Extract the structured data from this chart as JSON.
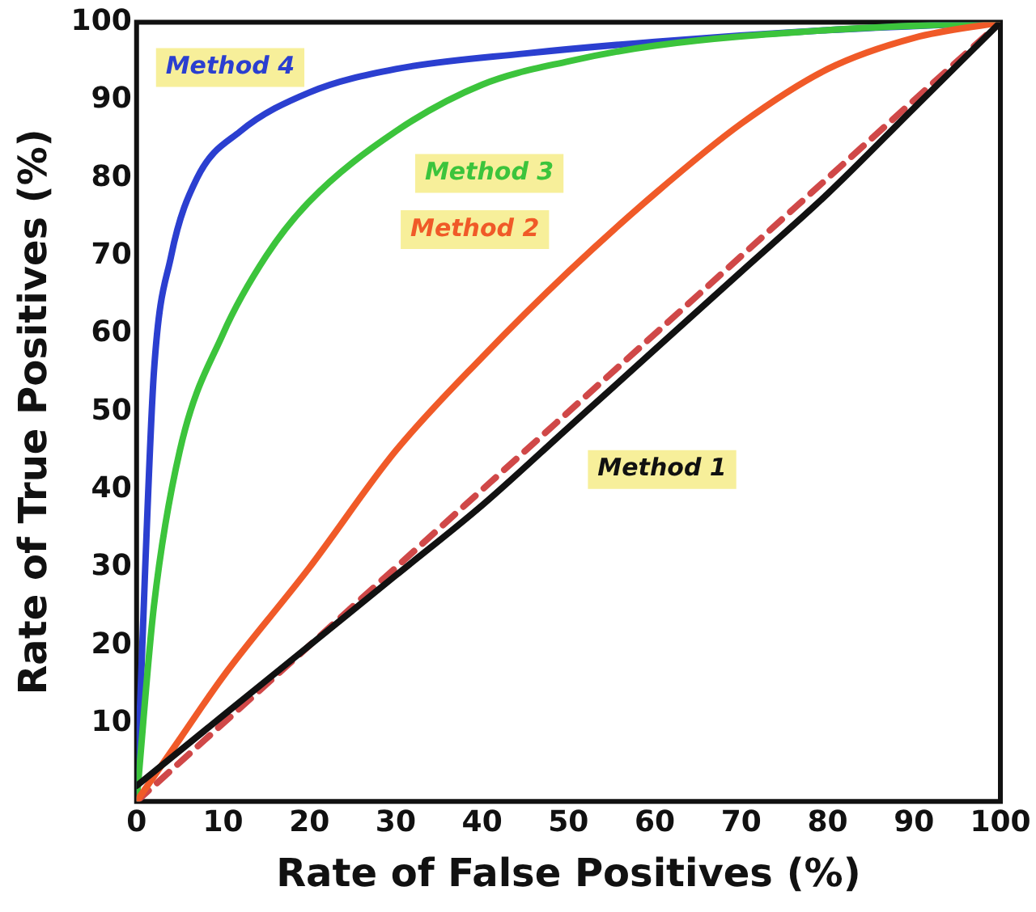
{
  "chart_data": {
    "type": "line",
    "xlabel": "Rate of False Positives (%)",
    "ylabel": "Rate of True Positives (%)",
    "xlim": [
      0,
      100
    ],
    "ylim": [
      0,
      100
    ],
    "xticks": [
      0,
      10,
      20,
      30,
      40,
      50,
      60,
      70,
      80,
      90,
      100
    ],
    "yticks": [
      10,
      20,
      30,
      40,
      50,
      60,
      70,
      80,
      90,
      100
    ],
    "grid": false,
    "legend": false,
    "marker": "none",
    "series": [
      {
        "name": "Method 1",
        "color": "#111111",
        "x": [
          0,
          10,
          20,
          30,
          40,
          50,
          60,
          70,
          80,
          90,
          100
        ],
        "values": [
          2,
          11,
          20,
          29,
          38,
          48,
          58,
          68,
          78,
          89,
          100
        ]
      },
      {
        "name": "Method 2",
        "color": "#f05a28",
        "x": [
          0,
          5,
          10,
          20,
          30,
          40,
          50,
          60,
          70,
          80,
          90,
          100
        ],
        "values": [
          0,
          8,
          16,
          30,
          45,
          57,
          68,
          78,
          87,
          94,
          98,
          100
        ]
      },
      {
        "name": "Method 3",
        "color": "#3cc43c",
        "x": [
          0,
          2,
          5,
          10,
          15,
          20,
          30,
          40,
          50,
          60,
          80,
          100
        ],
        "values": [
          0,
          25,
          45,
          60,
          70,
          77,
          86,
          92,
          95,
          97,
          99,
          100
        ]
      },
      {
        "name": "Method 4",
        "color": "#2b3fd0",
        "x": [
          0,
          1,
          2,
          4,
          7,
          12,
          20,
          30,
          45,
          60,
          80,
          100
        ],
        "values": [
          0,
          30,
          55,
          70,
          80,
          86,
          91,
          94,
          96,
          97.5,
          99,
          100
        ]
      },
      {
        "color": "#d04848",
        "line_style": "dashed",
        "x": [
          0,
          100
        ],
        "values": [
          0,
          100
        ]
      }
    ]
  }
}
